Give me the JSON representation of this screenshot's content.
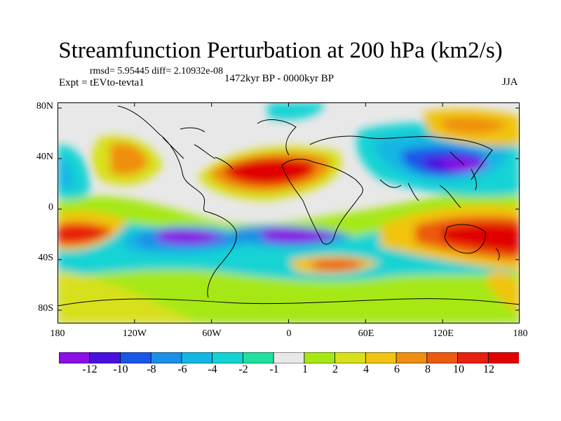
{
  "title": "Streamfunction Perturbation at 200 hPa (km2/s)",
  "stats": "rmsd= 5.95445  diff= 2.10932e-08",
  "experiment": "Expt = tEVto-tevta1",
  "period": "1472kyr BP - 0000kyr BP",
  "season": "JJA",
  "lat_labels": [
    "80N",
    "40N",
    "0",
    "40S",
    "80S"
  ],
  "lon_labels": [
    "180",
    "120W",
    "60W",
    "0",
    "60E",
    "120E",
    "180"
  ],
  "colorbar": {
    "labels": [
      "-12",
      "-10",
      "-8",
      "-6",
      "-4",
      "-2",
      "-1",
      "1",
      "2",
      "4",
      "6",
      "8",
      "10",
      "12"
    ],
    "colors": [
      "#8a10e6",
      "#4b0fe0",
      "#1a56e8",
      "#1c8fe6",
      "#12b6e4",
      "#12d3d4",
      "#20e0a0",
      "#e8e8e8",
      "#a6e812",
      "#d8e01a",
      "#f0c410",
      "#f08e10",
      "#ec5a10",
      "#e82010",
      "#e00000"
    ]
  }
}
